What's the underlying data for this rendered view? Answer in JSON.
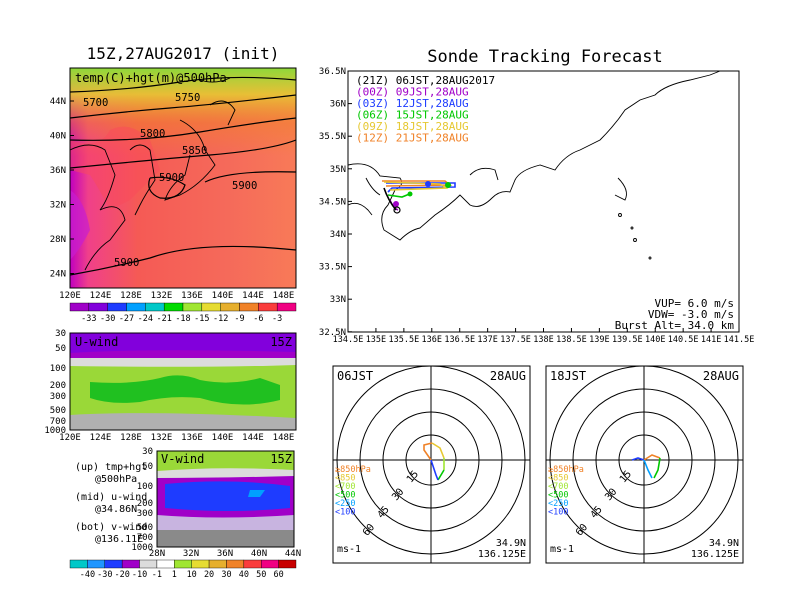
{
  "left_title": "15Z,27AUG2017 (init)",
  "right_title": "Sonde Tracking Forecast",
  "top_map": {
    "label": "temp(C)+hgt(m)@500hPa",
    "contours": [
      "5700",
      "5750",
      "5800",
      "5850",
      "5900",
      "5900",
      "5900"
    ],
    "lat_ticks": [
      "44N",
      "40N",
      "36N",
      "32N",
      "28N",
      "24N"
    ],
    "lon_ticks": [
      "120E",
      "124E",
      "128E",
      "132E",
      "136E",
      "140E",
      "144E",
      "148E"
    ],
    "colorbar": [
      "-33",
      "-30",
      "-27",
      "-24",
      "-21",
      "-18",
      "-15",
      "-12",
      "-9",
      "-6",
      "-3"
    ],
    "colorbar_colors": [
      "#a000c8",
      "#8200dc",
      "#1e3cff",
      "#00a0ff",
      "#00c8c8",
      "#00dc00",
      "#a0e632",
      "#e6dc32",
      "#e6af2d",
      "#f08228",
      "#fa3c3c",
      "#f00082"
    ]
  },
  "uwind": {
    "label": "U-wind",
    "time": "15Z",
    "p_ticks": [
      "30",
      "50",
      "100",
      "200",
      "300",
      "500",
      "700",
      "1000"
    ],
    "lon_ticks": [
      "120E",
      "124E",
      "128E",
      "132E",
      "136E",
      "140E",
      "144E",
      "148E"
    ]
  },
  "vwind": {
    "label": "V-wind",
    "time": "15Z",
    "p_ticks": [
      "30",
      "50",
      "100",
      "200",
      "300",
      "500",
      "700",
      "1000"
    ],
    "lat_ticks": [
      "28N",
      "32N",
      "36N",
      "40N",
      "44N"
    ]
  },
  "wind_colorbar": [
    "-40",
    "-30",
    "-20",
    "-10",
    "-1",
    "1",
    "10",
    "20",
    "30",
    "40",
    "50",
    "60"
  ],
  "wind_colorbar_colors": [
    "#00c8c8",
    "#1e96ff",
    "#1e3cff",
    "#a000c8",
    "#dcdcdc",
    "#ffffff",
    "#a0e632",
    "#e6dc32",
    "#e6af2d",
    "#f08228",
    "#fa3c3c",
    "#f00082",
    "#c80000"
  ],
  "legend_notes": [
    {
      "a": "(up) tmp+hgt",
      "b": "@500hPa"
    },
    {
      "a": "(mid) u-wind",
      "b": "@34.86N"
    },
    {
      "a": "(bot) v-wind",
      "b": "@136.11E"
    }
  ],
  "track_map": {
    "lat_ticks": [
      "36.5N",
      "36N",
      "35.5N",
      "35N",
      "34.5N",
      "34N",
      "33.5N",
      "33N",
      "32.5N"
    ],
    "lon_ticks": [
      "134.5E",
      "135E",
      "135.5E",
      "136E",
      "136.5E",
      "137E",
      "137.5E",
      "138E",
      "138.5E",
      "139E",
      "139.5E",
      "140E",
      "140.5E",
      "141E",
      "141.5E"
    ],
    "legend": [
      {
        "text": "(21Z)  06JST,28AUG2017",
        "color": "#000000"
      },
      {
        "text": "(00Z)  09JST,28AUG",
        "color": "#a000c8"
      },
      {
        "text": "(03Z)  12JST,28AUG",
        "color": "#1e3cff"
      },
      {
        "text": "(06Z)  15JST,28AUG",
        "color": "#00c800"
      },
      {
        "text": "(09Z)  18JST,28AUG",
        "color": "#e6c832"
      },
      {
        "text": "(12Z)  21JST,28AUG",
        "color": "#f08228"
      }
    ],
    "vup": "VUP=  6.0 m/s",
    "vdw": "VDW= -3.0 m/s",
    "burst": "Burst Alt= 34.0 km"
  },
  "hodographs": [
    {
      "time": "06JST",
      "date": "28AUG",
      "lat": "34.9N",
      "lon": "136.125E",
      "unit": "ms-1"
    },
    {
      "time": "18JST",
      "date": "28AUG",
      "lat": "34.9N",
      "lon": "136.125E",
      "unit": "ms-1"
    }
  ],
  "hodo_rings": [
    "15",
    "30",
    "45",
    "60"
  ],
  "hodo_levels": [
    {
      "text": "≥850hPa",
      "color": "#f08228"
    },
    {
      "text": "<850",
      "color": "#e6c832"
    },
    {
      "text": "<700",
      "color": "#a0e632"
    },
    {
      "text": "<500",
      "color": "#00c800"
    },
    {
      "text": "<250",
      "color": "#00a0ff"
    },
    {
      "text": "<100",
      "color": "#1e3cff"
    }
  ]
}
